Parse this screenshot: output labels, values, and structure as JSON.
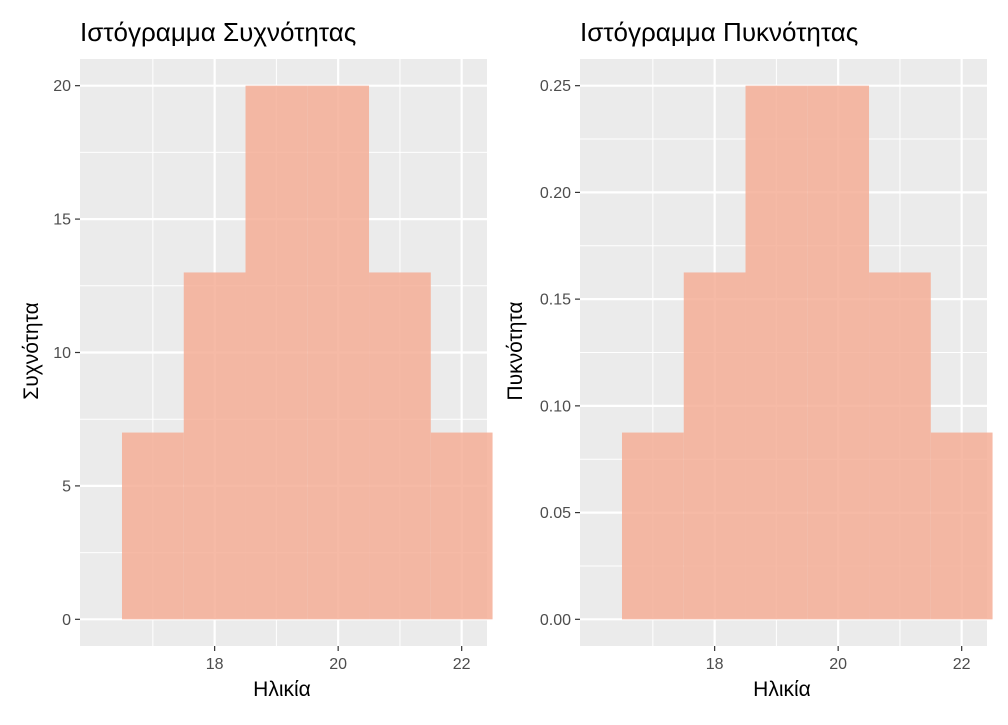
{
  "chart_data": [
    {
      "type": "bar",
      "title": "Ιστόγραμμα Συχνότητας",
      "xlabel": "Ηλικία",
      "ylabel": "Συχνότητα",
      "bins": [
        {
          "x0": 16.5,
          "x1": 17.5,
          "value": 7
        },
        {
          "x0": 17.5,
          "x1": 18.5,
          "value": 13
        },
        {
          "x0": 18.5,
          "x1": 19.5,
          "value": 20
        },
        {
          "x0": 19.5,
          "x1": 20.5,
          "value": 20
        },
        {
          "x0": 20.5,
          "x1": 21.5,
          "value": 13
        },
        {
          "x0": 21.5,
          "x1": 22.5,
          "value": 7
        }
      ],
      "xlim": [
        15.82,
        22.41
      ],
      "ylim": [
        -1.0,
        21.0
      ],
      "xticks": [
        18,
        20,
        22
      ],
      "xtick_labels": [
        "18",
        "20",
        "22"
      ],
      "yticks": [
        0,
        5,
        10,
        15,
        20
      ],
      "ytick_labels": [
        "0",
        "5",
        "10",
        "15",
        "20"
      ],
      "grid": true,
      "fill_color": "#f5ae96",
      "panel_background": "#ebebeb"
    },
    {
      "type": "bar",
      "title": "Ιστόγραμμα Πυκνότητας",
      "xlabel": "Ηλικία",
      "ylabel": "Πυκνότητα",
      "bins": [
        {
          "x0": 16.5,
          "x1": 17.5,
          "value": 0.0875
        },
        {
          "x0": 17.5,
          "x1": 18.5,
          "value": 0.1625
        },
        {
          "x0": 18.5,
          "x1": 19.5,
          "value": 0.25
        },
        {
          "x0": 19.5,
          "x1": 20.5,
          "value": 0.25
        },
        {
          "x0": 20.5,
          "x1": 21.5,
          "value": 0.1625
        },
        {
          "x0": 21.5,
          "x1": 22.5,
          "value": 0.0875
        }
      ],
      "xlim": [
        15.82,
        22.41
      ],
      "ylim": [
        -0.0125,
        0.2625
      ],
      "xticks": [
        18,
        20,
        22
      ],
      "xtick_labels": [
        "18",
        "20",
        "22"
      ],
      "yticks": [
        0.0,
        0.05,
        0.1,
        0.15,
        0.2,
        0.25
      ],
      "ytick_labels": [
        "0.00",
        "0.05",
        "0.10",
        "0.15",
        "0.20",
        "0.25"
      ],
      "grid": true,
      "fill_color": "#f5ae96",
      "panel_background": "#ebebeb"
    }
  ]
}
